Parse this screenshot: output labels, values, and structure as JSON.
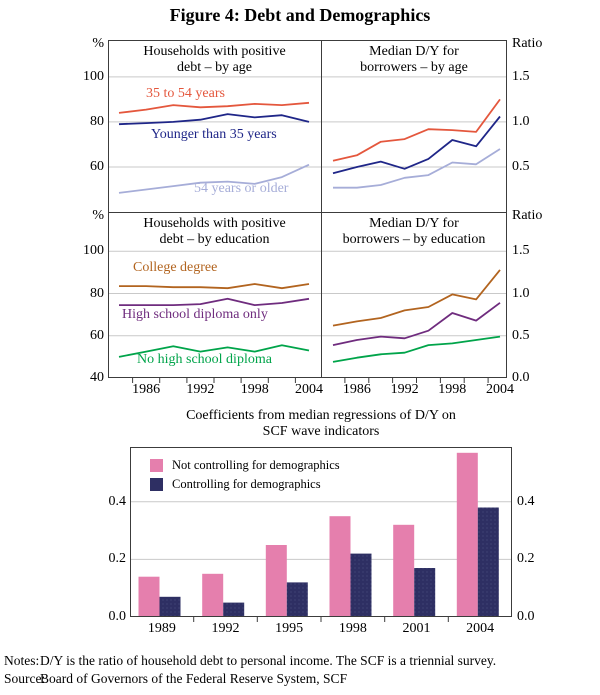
{
  "title": "Figure 4: Debt and Demographics",
  "notes_label": "Notes:",
  "notes_text": "D/Y is the ratio of household debt to personal income. The SCF is a triennial survey.",
  "source_label": "Source:",
  "source_text": "Board of Governors of the Federal Reserve System, SCF",
  "colors": {
    "age_35_54": "#E4573D",
    "age_under_35": "#1F2688",
    "age_55_plus": "#A6ADD8",
    "college": "#B2641F",
    "high_school": "#6F2C7E",
    "no_high_school": "#00A44A",
    "not_controlling": "#E57FAD",
    "controlling": "#2E2F63",
    "controlling_dot": "#4A5080",
    "grid": "#C9C9C9",
    "frame": "#3C3C3C",
    "tick": "#3C3C3C"
  },
  "chart_data": [
    {
      "id": "households-debt-by-age",
      "type": "line",
      "title_lines": [
        "Households with positive",
        "debt – by age"
      ],
      "unit_left": "%",
      "yticks": [
        "100",
        "80",
        "60"
      ],
      "ylim": [
        40,
        116.4
      ],
      "gridlines": [
        60,
        80,
        100
      ],
      "x": [
        1983,
        1986,
        1989,
        1992,
        1995,
        1998,
        2001,
        2004
      ],
      "xlabel_indices": [
        1,
        3,
        5,
        7
      ],
      "series": [
        {
          "name": "35 to 54 years",
          "color": "age_35_54",
          "values": [
            84,
            85.5,
            87.5,
            86.5,
            87,
            88,
            87.5,
            88.5
          ]
        },
        {
          "name": "Younger than 35 years",
          "color": "age_under_35",
          "values": [
            79,
            79.5,
            80,
            81,
            83.5,
            82,
            83,
            80
          ]
        },
        {
          "name": "54 years or older",
          "color": "age_55_plus",
          "values": [
            48.5,
            50,
            51.5,
            53,
            53.5,
            52.5,
            55.5,
            61
          ]
        }
      ]
    },
    {
      "id": "median-dy-by-age",
      "type": "line",
      "title_lines": [
        "Median D/Y for",
        "borrowers – by age"
      ],
      "unit_right": "Ratio",
      "yticks": [
        "1.5",
        "1.0",
        "0.5"
      ],
      "ylim": [
        0,
        1.91
      ],
      "gridlines": [
        0.5,
        1.0,
        1.5
      ],
      "x": [
        1983,
        1986,
        1989,
        1992,
        1995,
        1998,
        2001,
        2004
      ],
      "xlabel_indices": [
        1,
        3,
        5,
        7
      ],
      "series": [
        {
          "name": "35 to 54 years",
          "color": "age_35_54",
          "values": [
            0.57,
            0.63,
            0.78,
            0.81,
            0.92,
            0.91,
            0.89,
            1.25
          ]
        },
        {
          "name": "Younger than 35 years",
          "color": "age_under_35",
          "values": [
            0.43,
            0.5,
            0.56,
            0.48,
            0.59,
            0.8,
            0.73,
            1.06
          ]
        },
        {
          "name": "54 years or older",
          "color": "age_55_plus",
          "values": [
            0.27,
            0.27,
            0.3,
            0.38,
            0.41,
            0.55,
            0.53,
            0.7
          ]
        }
      ]
    },
    {
      "id": "households-debt-by-education",
      "type": "line",
      "title_lines": [
        "Households with positive",
        "debt – by education"
      ],
      "unit_left": "%",
      "yticks": [
        "100",
        "80",
        "60",
        "40"
      ],
      "ylim": [
        40,
        118.6
      ],
      "gridlines": [
        60,
        80,
        100
      ],
      "x": [
        1983,
        1986,
        1989,
        1992,
        1995,
        1998,
        2001,
        2004
      ],
      "xlabel_indices": [
        1,
        3,
        5,
        7
      ],
      "series": [
        {
          "name": "College degree",
          "color": "college",
          "values": [
            83.5,
            83.5,
            83,
            83,
            82.5,
            84.5,
            82.5,
            84.5
          ]
        },
        {
          "name": "High school diploma only",
          "color": "high_school",
          "values": [
            74.5,
            74.5,
            74.5,
            75,
            77.5,
            74.5,
            75.5,
            77.5
          ]
        },
        {
          "name": "No high school diploma",
          "color": "no_high_school",
          "values": [
            50,
            52.5,
            55,
            52.5,
            54.5,
            52.5,
            55.5,
            53
          ]
        }
      ]
    },
    {
      "id": "median-dy-by-education",
      "type": "line",
      "title_lines": [
        "Median D/Y for",
        "borrowers – by education"
      ],
      "unit_right": "Ratio",
      "yticks": [
        "1.5",
        "1.0",
        "0.5",
        "0.0"
      ],
      "ylim": [
        0,
        1.965
      ],
      "gridlines": [
        0.5,
        1.0,
        1.5
      ],
      "x": [
        1983,
        1986,
        1989,
        1992,
        1995,
        1998,
        2001,
        2004
      ],
      "xlabel_indices": [
        1,
        3,
        5,
        7
      ],
      "series": [
        {
          "name": "College degree",
          "color": "college",
          "values": [
            0.62,
            0.67,
            0.71,
            0.8,
            0.84,
            0.99,
            0.93,
            1.28
          ]
        },
        {
          "name": "High school diploma only",
          "color": "high_school",
          "values": [
            0.39,
            0.45,
            0.49,
            0.47,
            0.56,
            0.77,
            0.68,
            0.89
          ]
        },
        {
          "name": "No high school diploma",
          "color": "no_high_school",
          "values": [
            0.19,
            0.24,
            0.28,
            0.3,
            0.39,
            0.41,
            0.45,
            0.49
          ]
        }
      ]
    },
    {
      "id": "dy-regression-coefficients",
      "type": "bar",
      "title_lines": [
        "Coefficients from median regressions of D/Y on",
        "SCF wave indicators"
      ],
      "categories": [
        "1989",
        "1992",
        "1995",
        "1998",
        "2001",
        "2004"
      ],
      "yticks": [
        "0.4",
        "0.2",
        "0.0"
      ],
      "ylim": [
        0,
        0.59
      ],
      "gridlines": [
        0.2,
        0.4
      ],
      "legend_position": "top-left",
      "series": [
        {
          "name": "Not controlling for demographics",
          "color": "not_controlling",
          "values": [
            0.14,
            0.15,
            0.25,
            0.35,
            0.32,
            0.57
          ]
        },
        {
          "name": "Controlling for demographics",
          "color": "controlling",
          "values": [
            0.07,
            0.05,
            0.12,
            0.22,
            0.17,
            0.38
          ]
        }
      ]
    }
  ]
}
